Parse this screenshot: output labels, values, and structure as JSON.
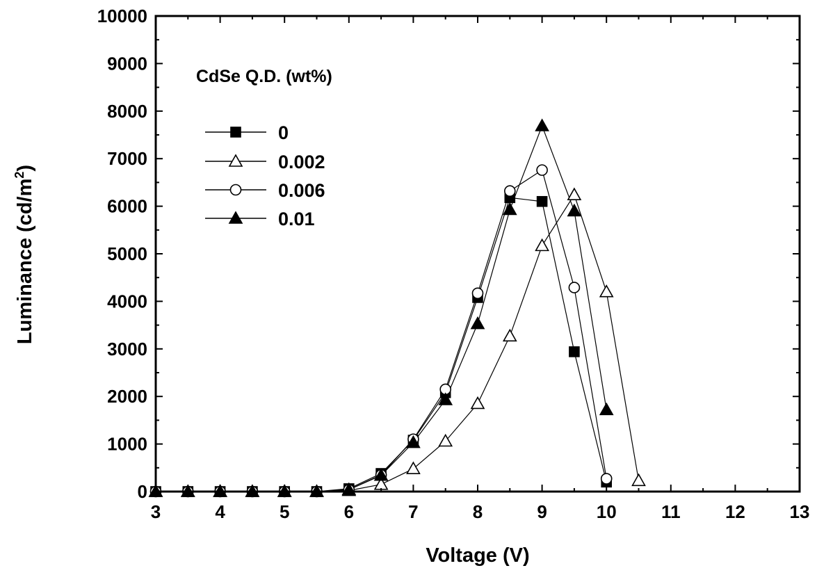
{
  "chart_data": {
    "type": "line",
    "xlabel": "Voltage (V)",
    "ylabel_main": "Luminance (cd/m",
    "ylabel_sup": "2",
    "ylabel_close": ")",
    "xlim": [
      3,
      13
    ],
    "ylim": [
      0,
      10000
    ],
    "xticks": [
      "3",
      "4",
      "5",
      "6",
      "7",
      "8",
      "9",
      "10",
      "11",
      "12",
      "13"
    ],
    "yticks": [
      "0",
      "1000",
      "2000",
      "3000",
      "4000",
      "5000",
      "6000",
      "7000",
      "8000",
      "9000",
      "10000"
    ],
    "grid": false,
    "legend_title": "CdSe Q.D. (wt%)",
    "legend_position": "top-left",
    "series": [
      {
        "name": "0",
        "marker": "filled-square",
        "x": [
          3,
          3.5,
          4,
          4.5,
          5,
          5.5,
          6,
          6.5,
          7,
          7.5,
          8,
          8.5,
          9,
          9.5,
          10
        ],
        "y": [
          0,
          0,
          0,
          0,
          0,
          0,
          60,
          380,
          1080,
          2080,
          4080,
          6180,
          6100,
          2940,
          200
        ]
      },
      {
        "name": "0.002",
        "marker": "open-triangle",
        "x": [
          3,
          3.5,
          4,
          4.5,
          5,
          5.5,
          6,
          6.5,
          7,
          7.5,
          8,
          8.5,
          9,
          9.5,
          10,
          10.5
        ],
        "y": [
          0,
          0,
          0,
          0,
          0,
          0,
          20,
          150,
          480,
          1060,
          1850,
          3270,
          5170,
          6240,
          4200,
          230
        ]
      },
      {
        "name": "0.006",
        "marker": "open-circle",
        "x": [
          3,
          3.5,
          4,
          4.5,
          5,
          5.5,
          6,
          6.5,
          7,
          7.5,
          8,
          8.5,
          9,
          9.5,
          10
        ],
        "y": [
          0,
          0,
          0,
          0,
          0,
          0,
          40,
          350,
          1100,
          2150,
          4170,
          6320,
          6760,
          4290,
          270
        ]
      },
      {
        "name": "0.01",
        "marker": "filled-triangle",
        "x": [
          3,
          3.5,
          4,
          4.5,
          5,
          5.5,
          6,
          6.5,
          7,
          7.5,
          8,
          8.5,
          9,
          9.5,
          10
        ],
        "y": [
          0,
          0,
          0,
          0,
          0,
          0,
          40,
          340,
          1030,
          1930,
          3530,
          5930,
          7690,
          5900,
          1720
        ]
      }
    ]
  }
}
